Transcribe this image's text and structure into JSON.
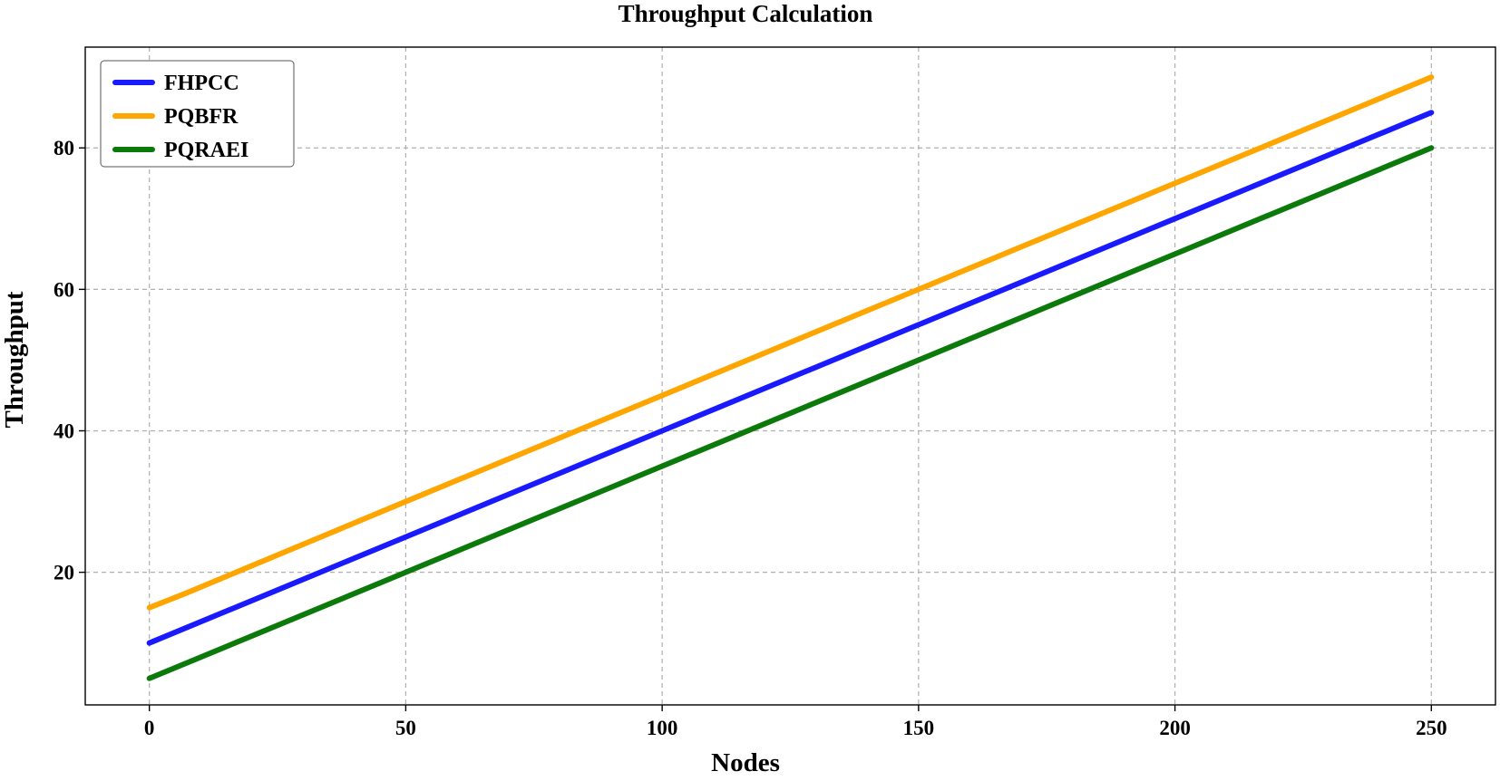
{
  "chart_data": {
    "type": "line",
    "title": "Throughput Calculation",
    "xlabel": "Nodes",
    "ylabel": "Throughput",
    "xlim": [
      -12.5,
      262.5
    ],
    "ylim": [
      1.25,
      94.25
    ],
    "xticks": [
      0,
      50,
      100,
      150,
      200,
      250
    ],
    "yticks": [
      20,
      40,
      60,
      80
    ],
    "grid": true,
    "legend_position": "upper-left",
    "series": [
      {
        "name": "FHPCC",
        "color": "#1a1aff",
        "x": [
          0,
          50,
          100,
          150,
          200,
          250
        ],
        "y": [
          10,
          25,
          40,
          55,
          70,
          85
        ]
      },
      {
        "name": "PQBFR",
        "color": "#ffa500",
        "x": [
          0,
          7,
          50,
          100,
          150,
          200,
          250
        ],
        "y": [
          15,
          17,
          30,
          45,
          60,
          75,
          90
        ]
      },
      {
        "name": "PQRAEI",
        "color": "#0b7a0b",
        "x": [
          0,
          50,
          100,
          150,
          200,
          250
        ],
        "y": [
          5,
          20,
          35,
          50,
          65,
          80
        ]
      }
    ]
  }
}
